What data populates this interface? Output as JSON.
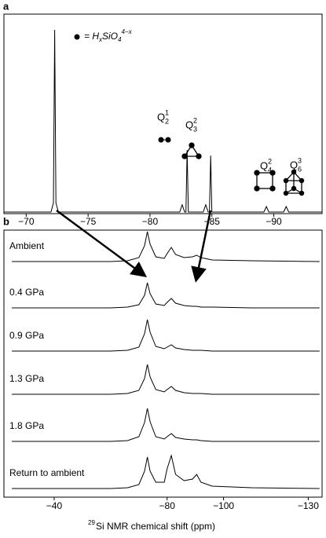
{
  "chart_data": [
    {
      "type": "line",
      "panel": "a",
      "xlim": [
        -68.2,
        -93.9
      ],
      "xticks": [
        {
          "value": -70,
          "label": "−70"
        },
        {
          "value": -75,
          "label": "−75"
        },
        {
          "value": -80,
          "label": "−80"
        },
        {
          "value": -85,
          "label": "−85"
        },
        {
          "value": -90,
          "label": "−90"
        }
      ],
      "x": [
        -68.2,
        -72.0,
        -72.2,
        -72.3,
        -72.4,
        -72.6,
        -82.4,
        -82.6,
        -82.8,
        -82.9,
        -83.0,
        -83.1,
        -84.3,
        -84.5,
        -84.7,
        -84.8,
        -84.9,
        -85.0,
        -89.2,
        -89.4,
        -89.6,
        -90.8,
        -91.0,
        -91.2,
        -93.9
      ],
      "series": [
        {
          "color": "#000000",
          "values": [
            0,
            0,
            5,
            100,
            5,
            0,
            0,
            4,
            0,
            0,
            34,
            0,
            0,
            4,
            0,
            0,
            31,
            0,
            0,
            3,
            0,
            0,
            3,
            0,
            0
          ]
        }
      ],
      "legend_note": {
        "text": "= H",
        "sub": "x",
        "mid": "SiO",
        "sub2": "4",
        "sup": "4−x"
      },
      "species": [
        {
          "text": "Q",
          "sub": "2",
          "sup": "1"
        },
        {
          "text": "Q",
          "sub": "3",
          "sup": "2"
        },
        {
          "text": "Q",
          "sub": "4",
          "sup": "2"
        },
        {
          "text": "Q",
          "sub": "6",
          "sup": "3"
        }
      ]
    },
    {
      "type": "line",
      "panel": "b",
      "xlim": [
        -22.2,
        -134.9
      ],
      "xticks": [
        {
          "value": -40,
          "label": "−40"
        },
        {
          "value": -80,
          "label": "−80"
        },
        {
          "value": -100,
          "label": "−100"
        },
        {
          "value": -130,
          "label": "−130"
        }
      ],
      "xlabel": {
        "sup": "29",
        "text": "Si NMR chemical shift (ppm)"
      },
      "x": [
        -25,
        -60,
        -66,
        -70,
        -72,
        -73,
        -74,
        -76,
        -79,
        -80,
        -81.5,
        -83,
        -86,
        -89,
        -90.5,
        -92,
        -96,
        -110,
        -134
      ],
      "series": [
        {
          "name": "Ambient",
          "color": "#000000",
          "values": [
            0,
            0,
            1,
            5,
            20,
            38,
            22,
            6,
            4,
            10,
            18,
            9,
            5,
            6,
            8,
            5,
            2,
            1,
            0
          ]
        },
        {
          "name": "0.4 GPa",
          "color": "#000000",
          "values": [
            0,
            0,
            1,
            4,
            16,
            32,
            18,
            5,
            3,
            7,
            12,
            6,
            3,
            2,
            2,
            1,
            1,
            0,
            0
          ]
        },
        {
          "name": "0.9 GPa",
          "color": "#000000",
          "values": [
            0,
            0,
            1,
            5,
            22,
            40,
            24,
            6,
            3,
            5,
            8,
            4,
            2,
            1,
            1,
            1,
            0,
            0,
            0
          ]
        },
        {
          "name": "1.3 GPa",
          "color": "#000000",
          "values": [
            0,
            0,
            1,
            5,
            20,
            38,
            22,
            6,
            3,
            6,
            10,
            5,
            2,
            1,
            1,
            1,
            0,
            0,
            0
          ]
        },
        {
          "name": "1.8 GPa",
          "color": "#000000",
          "values": [
            0,
            0,
            1,
            6,
            24,
            42,
            25,
            6,
            3,
            6,
            10,
            5,
            3,
            2,
            2,
            1,
            0,
            0,
            0
          ]
        },
        {
          "name": "Return to ambient",
          "color": "#000000",
          "values": [
            0,
            0,
            1,
            5,
            22,
            40,
            22,
            8,
            8,
            25,
            42,
            18,
            10,
            12,
            18,
            8,
            3,
            1,
            0
          ]
        }
      ]
    }
  ]
}
